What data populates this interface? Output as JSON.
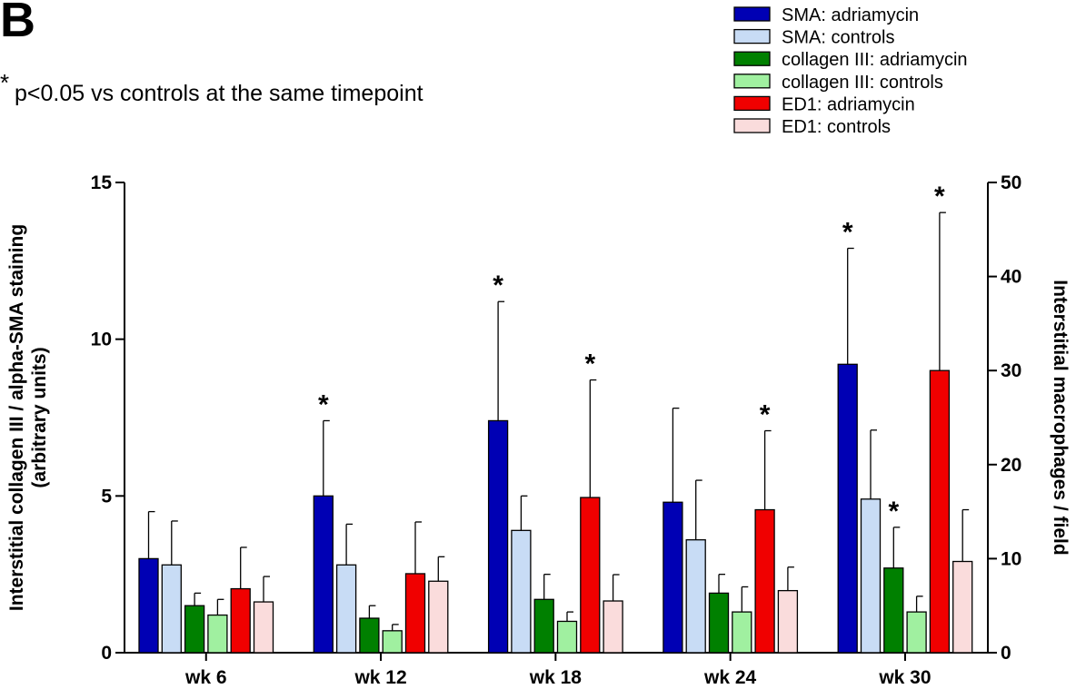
{
  "figure": {
    "panel_label": "B",
    "significance_symbol": "*",
    "note_text": "p<0.05 vs controls at the same timepoint"
  },
  "chart_data": {
    "type": "bar",
    "categories": [
      "wk 6",
      "wk 12",
      "wk 18",
      "wk 24",
      "wk 30"
    ],
    "left_axis": {
      "label_line1": "Interstitial collagen III / alpha-SMA staining",
      "label_line2": "(arbitrary units)",
      "ylim": [
        0,
        15
      ],
      "ticks": [
        0,
        5,
        10,
        15
      ],
      "tick_labels": [
        "0",
        "5",
        "10",
        "15"
      ]
    },
    "right_axis": {
      "label": "Interstitial macrophages / field",
      "ylim": [
        0,
        50
      ],
      "ticks": [
        0,
        10,
        20,
        30,
        40,
        50
      ],
      "tick_labels": [
        "0",
        "10",
        "20",
        "30",
        "40",
        "50"
      ]
    },
    "legend_position": "top-right",
    "grid": false,
    "series": [
      {
        "name": "SMA: adriamycin",
        "axis": "left",
        "color": "#0000b4",
        "values": [
          3.0,
          5.0,
          7.4,
          4.8,
          9.2
        ],
        "errors": [
          1.5,
          2.4,
          3.8,
          3.0,
          3.7
        ],
        "significant": [
          false,
          true,
          true,
          false,
          true
        ]
      },
      {
        "name": "SMA: controls",
        "axis": "left",
        "color": "#c8dcf5",
        "values": [
          2.8,
          2.8,
          3.9,
          3.6,
          4.9
        ],
        "errors": [
          1.4,
          1.3,
          1.1,
          1.9,
          2.2
        ],
        "significant": [
          false,
          false,
          false,
          false,
          false
        ]
      },
      {
        "name": "collagen III: adriamycin",
        "axis": "left",
        "color": "#008000",
        "values": [
          1.5,
          1.1,
          1.7,
          1.9,
          2.7
        ],
        "errors": [
          0.4,
          0.4,
          0.8,
          0.6,
          1.3
        ],
        "significant": [
          false,
          false,
          false,
          false,
          true
        ]
      },
      {
        "name": "collagen III: controls",
        "axis": "left",
        "color": "#a0f0a0",
        "values": [
          1.2,
          0.7,
          1.0,
          1.3,
          1.3
        ],
        "errors": [
          0.5,
          0.2,
          0.3,
          0.8,
          0.5
        ],
        "significant": [
          false,
          false,
          false,
          false,
          false
        ]
      },
      {
        "name": "ED1: adriamycin",
        "axis": "right",
        "color": "#f00000",
        "values": [
          6.8,
          8.4,
          16.5,
          15.2,
          30.0
        ],
        "errors": [
          4.4,
          5.5,
          12.5,
          8.4,
          16.8
        ],
        "significant": [
          false,
          false,
          true,
          true,
          true
        ]
      },
      {
        "name": "ED1: controls",
        "axis": "right",
        "color": "#fadcdc",
        "values": [
          5.4,
          7.6,
          5.5,
          6.6,
          9.7
        ],
        "errors": [
          2.7,
          2.6,
          2.8,
          2.5,
          5.5
        ],
        "significant": [
          false,
          false,
          false,
          false,
          false
        ]
      }
    ]
  }
}
